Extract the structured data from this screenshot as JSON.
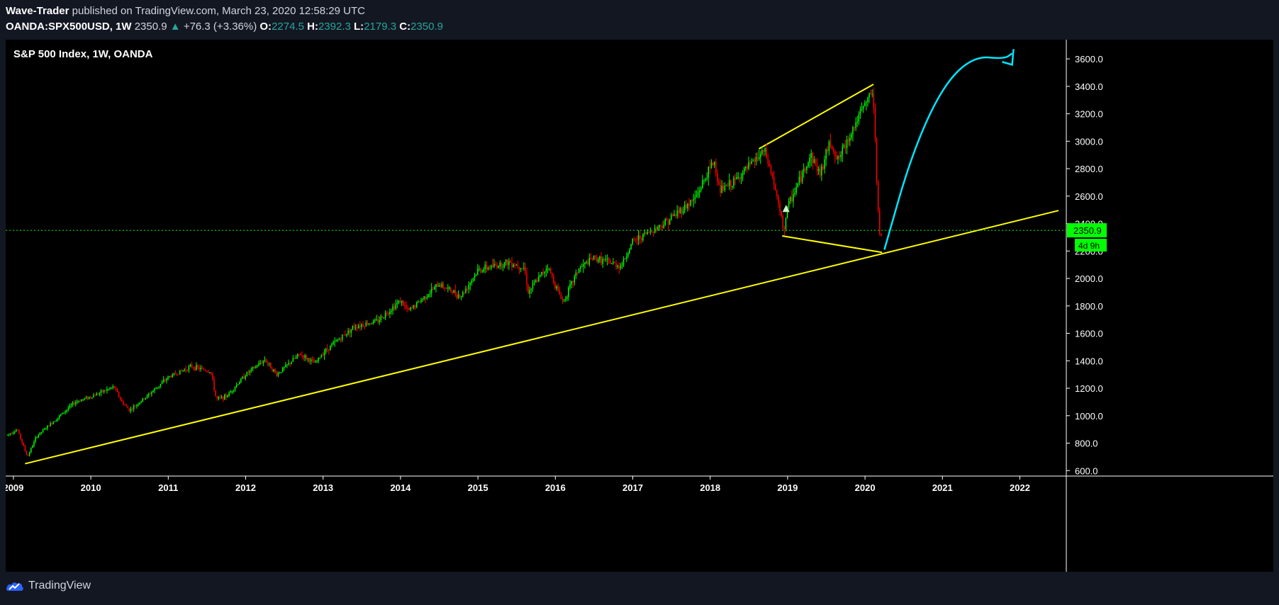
{
  "header": {
    "author": "Wave-Trader",
    "published": "published on TradingView.com, March 23, 2020 12:58:29 UTC",
    "symbol": "OANDA:SPX500USD, 1W",
    "last": "2350.9",
    "change": "+76.3 (+3.36%)",
    "open_label": "O:",
    "open": "2274.5",
    "high_label": "H:",
    "high": "2392.3",
    "low_label": "L:",
    "low": "2179.3",
    "close_label": "C:",
    "close": "2350.9"
  },
  "footer": {
    "brand": "TradingView"
  },
  "colors": {
    "up": "#00ff00",
    "down": "#ff0000",
    "trendline": "#ffff00",
    "projection": "#00e5ff",
    "price_line": "#00ff00",
    "panel": "#000000"
  },
  "chart_data": {
    "type": "candlestick",
    "title": "S&P 500 Index, 1W, OANDA",
    "x_range": [
      2008.9,
      2022.6
    ],
    "ylim": [
      560,
      3740
    ],
    "x_ticks": [
      {
        "v": 2009,
        "label": "2009"
      },
      {
        "v": 2010,
        "label": "2010"
      },
      {
        "v": 2011,
        "label": "2011"
      },
      {
        "v": 2012,
        "label": "2012"
      },
      {
        "v": 2013,
        "label": "2013"
      },
      {
        "v": 2014,
        "label": "2014"
      },
      {
        "v": 2015,
        "label": "2015"
      },
      {
        "v": 2016,
        "label": "2016"
      },
      {
        "v": 2017,
        "label": "2017"
      },
      {
        "v": 2018,
        "label": "2018"
      },
      {
        "v": 2019,
        "label": "2019"
      },
      {
        "v": 2020,
        "label": "2020"
      },
      {
        "v": 2021,
        "label": "2021"
      },
      {
        "v": 2022,
        "label": "2022"
      }
    ],
    "y_ticks": [
      {
        "v": 600,
        "label": "600.0"
      },
      {
        "v": 800,
        "label": "800.0"
      },
      {
        "v": 1000,
        "label": "1000.0"
      },
      {
        "v": 1200,
        "label": "1200.0"
      },
      {
        "v": 1400,
        "label": "1400.0"
      },
      {
        "v": 1600,
        "label": "1600.0"
      },
      {
        "v": 1800,
        "label": "1800.0"
      },
      {
        "v": 2000,
        "label": "2000.0"
      },
      {
        "v": 2200,
        "label": "2200.0"
      },
      {
        "v": 2400,
        "label": "2400.0"
      },
      {
        "v": 2600,
        "label": "2600.0"
      },
      {
        "v": 2800,
        "label": "2800.0"
      },
      {
        "v": 3000,
        "label": "3000.0"
      },
      {
        "v": 3200,
        "label": "3200.0"
      },
      {
        "v": 3400,
        "label": "3400.0"
      },
      {
        "v": 3600,
        "label": "3600.0"
      }
    ],
    "price_path": [
      [
        2008.92,
        860
      ],
      [
        2009.05,
        900
      ],
      [
        2009.18,
        700
      ],
      [
        2009.3,
        850
      ],
      [
        2009.5,
        950
      ],
      [
        2009.8,
        1100
      ],
      [
        2010.0,
        1140
      ],
      [
        2010.3,
        1210
      ],
      [
        2010.4,
        1100
      ],
      [
        2010.5,
        1040
      ],
      [
        2010.7,
        1130
      ],
      [
        2011.0,
        1280
      ],
      [
        2011.3,
        1360
      ],
      [
        2011.55,
        1320
      ],
      [
        2011.62,
        1120
      ],
      [
        2011.75,
        1140
      ],
      [
        2012.0,
        1300
      ],
      [
        2012.25,
        1410
      ],
      [
        2012.4,
        1300
      ],
      [
        2012.7,
        1450
      ],
      [
        2012.9,
        1380
      ],
      [
        2013.0,
        1460
      ],
      [
        2013.4,
        1650
      ],
      [
        2013.7,
        1690
      ],
      [
        2014.0,
        1840
      ],
      [
        2014.1,
        1760
      ],
      [
        2014.5,
        1960
      ],
      [
        2014.78,
        1870
      ],
      [
        2015.0,
        2060
      ],
      [
        2015.4,
        2120
      ],
      [
        2015.6,
        2080
      ],
      [
        2015.65,
        1900
      ],
      [
        2015.9,
        2090
      ],
      [
        2016.0,
        1950
      ],
      [
        2016.1,
        1830
      ],
      [
        2016.3,
        2070
      ],
      [
        2016.5,
        2150
      ],
      [
        2016.85,
        2090
      ],
      [
        2017.0,
        2270
      ],
      [
        2017.4,
        2400
      ],
      [
        2017.8,
        2580
      ],
      [
        2018.05,
        2860
      ],
      [
        2018.12,
        2640
      ],
      [
        2018.3,
        2700
      ],
      [
        2018.7,
        2930
      ],
      [
        2018.8,
        2750
      ],
      [
        2018.95,
        2350
      ],
      [
        2019.0,
        2520
      ],
      [
        2019.3,
        2900
      ],
      [
        2019.42,
        2760
      ],
      [
        2019.55,
        3000
      ],
      [
        2019.65,
        2860
      ],
      [
        2019.85,
        3100
      ],
      [
        2020.1,
        3380
      ],
      [
        2020.13,
        3000
      ],
      [
        2020.16,
        2600
      ],
      [
        2020.2,
        2250
      ],
      [
        2020.22,
        2350
      ]
    ],
    "last_price": 2350.9,
    "price_tag": "2350.9",
    "countdown": "4d 9h",
    "trendlines": [
      {
        "from": [
          2009.15,
          650
        ],
        "to": [
          2022.5,
          2495
        ],
        "color": "#ffff00"
      },
      {
        "from": [
          2018.63,
          2945
        ],
        "to": [
          2020.11,
          3415
        ],
        "color": "#ffff00"
      },
      {
        "from": [
          2018.93,
          2310
        ],
        "to": [
          2020.22,
          2190
        ],
        "color": "#ffff00"
      }
    ],
    "projection": {
      "color": "#00e5ff",
      "points": [
        [
          2020.25,
          2210
        ],
        [
          2020.6,
          2900
        ],
        [
          2021.0,
          3400
        ],
        [
          2021.4,
          3620
        ],
        [
          2021.8,
          3600
        ],
        [
          2021.9,
          3640
        ]
      ]
    },
    "annotations": [
      {
        "x": 2018.98,
        "y": 2510,
        "shape": "triangle"
      }
    ]
  }
}
